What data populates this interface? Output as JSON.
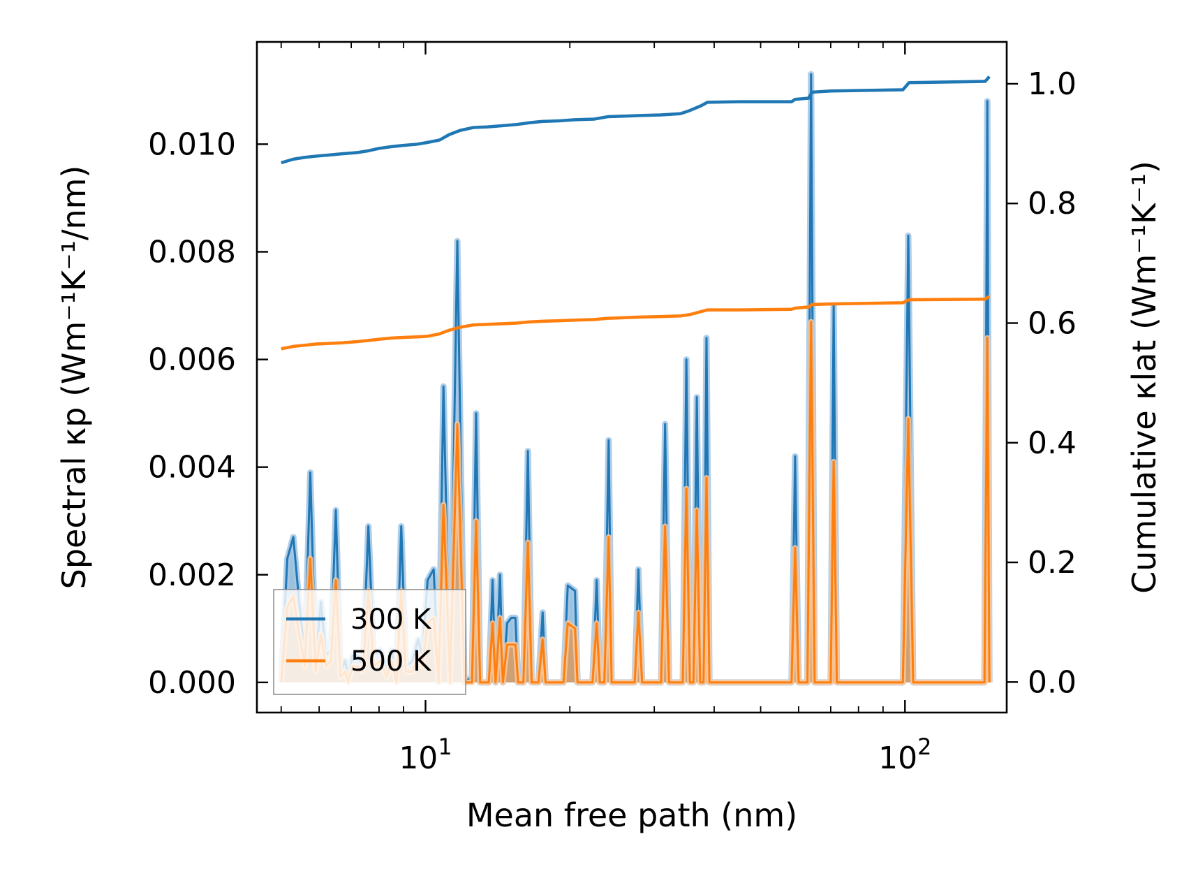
{
  "chart_data": {
    "type": "line",
    "title": "",
    "xlabel": "Mean free path (nm)",
    "ylabel_left": "Spectral κp (Wm⁻¹K⁻¹/nm)",
    "ylabel_right": "Cumulative κlat (Wm⁻¹K⁻¹)",
    "xscale": "log",
    "xlim": [
      4.45,
      163
    ],
    "ylim_left": [
      -0.00056,
      0.0119
    ],
    "ylim_right": [
      -0.051,
      1.07
    ],
    "x_ticks": [
      {
        "value": 10,
        "base": "10",
        "exp": "1"
      },
      {
        "value": 100,
        "base": "10",
        "exp": "2"
      }
    ],
    "y_ticks_left": [
      "0.000",
      "0.002",
      "0.004",
      "0.006",
      "0.008",
      "0.010"
    ],
    "y_ticks_right": [
      "0.0",
      "0.2",
      "0.4",
      "0.6",
      "0.8",
      "1.0"
    ],
    "legend": {
      "position": "lower-left",
      "entries": [
        "300 K",
        "500 K"
      ]
    },
    "colors": {
      "s300": "#1f77b4",
      "s500": "#ff7f0e",
      "fill300": "#a6c8e6",
      "fill500": "#ffc999"
    },
    "spectral_300K": [
      [
        5.0,
        0
      ],
      [
        5.15,
        0.0023
      ],
      [
        5.3,
        0.0027
      ],
      [
        5.45,
        0.0015
      ],
      [
        5.6,
        0.0005
      ],
      [
        5.75,
        0.0039
      ],
      [
        5.9,
        0.0004
      ],
      [
        6.05,
        0.0015
      ],
      [
        6.2,
        0.0005
      ],
      [
        6.35,
        0.0006
      ],
      [
        6.5,
        0.0032
      ],
      [
        6.65,
        0.0002
      ],
      [
        6.8,
        0.0004
      ],
      [
        6.9,
        0.0001
      ],
      [
        7.05,
        0.0005
      ],
      [
        7.2,
        0.0005
      ],
      [
        7.4,
        0.0003
      ],
      [
        7.6,
        0.0029
      ],
      [
        7.8,
        0.0005
      ],
      [
        8.05,
        0.0006
      ],
      [
        8.3,
        0.0002
      ],
      [
        8.5,
        0.0006
      ],
      [
        8.7,
        0.0001
      ],
      [
        8.9,
        0.0029
      ],
      [
        9.1,
        0.0003
      ],
      [
        9.4,
        0.0004
      ],
      [
        9.65,
        0.0008
      ],
      [
        9.85,
        0.0005
      ],
      [
        10.1,
        0.0019
      ],
      [
        10.4,
        0.0021
      ],
      [
        10.65,
        0
      ],
      [
        10.9,
        0.0055
      ],
      [
        11.25,
        0
      ],
      [
        11.65,
        0.0082
      ],
      [
        12.05,
        0
      ],
      [
        12.5,
        0.0001
      ],
      [
        12.75,
        0.005
      ],
      [
        13.0,
        0
      ],
      [
        13.55,
        0
      ],
      [
        13.8,
        0.0019
      ],
      [
        14.0,
        0
      ],
      [
        14.3,
        0.002
      ],
      [
        14.5,
        0
      ],
      [
        14.8,
        0.0011
      ],
      [
        15.1,
        0.0012
      ],
      [
        15.4,
        0.0012
      ],
      [
        15.6,
        0
      ],
      [
        16.0,
        0
      ],
      [
        16.35,
        0.0043
      ],
      [
        16.65,
        0
      ],
      [
        17.2,
        0
      ],
      [
        17.55,
        0.0013
      ],
      [
        17.8,
        0
      ],
      [
        19.4,
        0
      ],
      [
        19.8,
        0.0018
      ],
      [
        20.5,
        0.0017
      ],
      [
        20.75,
        0
      ],
      [
        22.3,
        0
      ],
      [
        22.75,
        0.0019
      ],
      [
        23.1,
        0
      ],
      [
        23.6,
        0
      ],
      [
        24.1,
        0.0045
      ],
      [
        24.45,
        0
      ],
      [
        27.3,
        0
      ],
      [
        27.8,
        0.0021
      ],
      [
        28.3,
        0
      ],
      [
        31.0,
        0
      ],
      [
        31.6,
        0.0048
      ],
      [
        32.2,
        0
      ],
      [
        34.4,
        0
      ],
      [
        35.0,
        0.006
      ],
      [
        35.6,
        0
      ],
      [
        36.2,
        0
      ],
      [
        36.8,
        0.0053
      ],
      [
        37.4,
        0
      ],
      [
        38.0,
        0
      ],
      [
        38.55,
        0.0064
      ],
      [
        39.1,
        0
      ],
      [
        58.0,
        0
      ],
      [
        59.0,
        0.0042
      ],
      [
        60.0,
        0
      ],
      [
        62.6,
        0
      ],
      [
        63.7,
        0.0113
      ],
      [
        64.8,
        0
      ],
      [
        70.0,
        0
      ],
      [
        71.0,
        0.007
      ],
      [
        72.1,
        0
      ],
      [
        99.0,
        0
      ],
      [
        101.6,
        0.0083
      ],
      [
        104.0,
        0
      ],
      [
        146.5,
        0
      ],
      [
        148.5,
        0.0108
      ],
      [
        150.0,
        0
      ]
    ],
    "spectral_500K": [
      [
        5.0,
        0
      ],
      [
        5.15,
        0.0014
      ],
      [
        5.3,
        0.0016
      ],
      [
        5.45,
        0.0009
      ],
      [
        5.6,
        0.0003
      ],
      [
        5.75,
        0.0023
      ],
      [
        5.9,
        0.0002
      ],
      [
        6.05,
        0.0009
      ],
      [
        6.2,
        0.0003
      ],
      [
        6.35,
        0.0004
      ],
      [
        6.5,
        0.0019
      ],
      [
        6.65,
        0.0001
      ],
      [
        6.8,
        0.0002
      ],
      [
        6.9,
        0
      ],
      [
        7.05,
        0.0003
      ],
      [
        7.2,
        0.0003
      ],
      [
        7.4,
        0.0002
      ],
      [
        7.6,
        0.0017
      ],
      [
        7.8,
        0.0003
      ],
      [
        8.05,
        0.0004
      ],
      [
        8.3,
        0.0001
      ],
      [
        8.5,
        0.0004
      ],
      [
        8.7,
        0
      ],
      [
        8.9,
        0.0017
      ],
      [
        9.1,
        0.0002
      ],
      [
        9.4,
        0.0002
      ],
      [
        9.65,
        0.0005
      ],
      [
        9.85,
        0.0003
      ],
      [
        10.1,
        0.0011
      ],
      [
        10.4,
        0.0012
      ],
      [
        10.65,
        0
      ],
      [
        10.9,
        0.0033
      ],
      [
        11.25,
        0
      ],
      [
        11.65,
        0.0048
      ],
      [
        12.05,
        0
      ],
      [
        12.5,
        0
      ],
      [
        12.75,
        0.003
      ],
      [
        13.0,
        0
      ],
      [
        13.55,
        0
      ],
      [
        13.8,
        0.0011
      ],
      [
        14.0,
        0
      ],
      [
        14.3,
        0.0012
      ],
      [
        14.5,
        0
      ],
      [
        14.8,
        0.0007
      ],
      [
        15.1,
        0.0007
      ],
      [
        15.4,
        0.0007
      ],
      [
        15.6,
        0
      ],
      [
        16.0,
        0
      ],
      [
        16.35,
        0.0026
      ],
      [
        16.65,
        0
      ],
      [
        17.2,
        0
      ],
      [
        17.55,
        0.0008
      ],
      [
        17.8,
        0
      ],
      [
        19.4,
        0
      ],
      [
        19.8,
        0.0011
      ],
      [
        20.5,
        0.001
      ],
      [
        20.75,
        0
      ],
      [
        22.3,
        0
      ],
      [
        22.75,
        0.0011
      ],
      [
        23.1,
        0
      ],
      [
        23.6,
        0
      ],
      [
        24.1,
        0.0027
      ],
      [
        24.45,
        0
      ],
      [
        27.3,
        0
      ],
      [
        27.8,
        0.0013
      ],
      [
        28.3,
        0
      ],
      [
        31.0,
        0
      ],
      [
        31.6,
        0.0029
      ],
      [
        32.2,
        0
      ],
      [
        34.4,
        0
      ],
      [
        35.0,
        0.0036
      ],
      [
        35.6,
        0
      ],
      [
        36.2,
        0
      ],
      [
        36.8,
        0.0032
      ],
      [
        37.4,
        0
      ],
      [
        38.0,
        0
      ],
      [
        38.55,
        0.0038
      ],
      [
        39.1,
        0
      ],
      [
        58.0,
        0
      ],
      [
        59.0,
        0.0025
      ],
      [
        60.0,
        0
      ],
      [
        62.6,
        0
      ],
      [
        63.7,
        0.0067
      ],
      [
        64.8,
        0
      ],
      [
        70.0,
        0
      ],
      [
        71.0,
        0.0041
      ],
      [
        72.1,
        0
      ],
      [
        99.0,
        0
      ],
      [
        101.6,
        0.0049
      ],
      [
        104.0,
        0
      ],
      [
        146.5,
        0
      ],
      [
        148.5,
        0.0064
      ],
      [
        150.0,
        0
      ]
    ],
    "cumulative_300K": [
      [
        5.0,
        0.868
      ],
      [
        5.3,
        0.874
      ],
      [
        5.6,
        0.877
      ],
      [
        5.9,
        0.879
      ],
      [
        6.3,
        0.881
      ],
      [
        6.7,
        0.883
      ],
      [
        7.2,
        0.885
      ],
      [
        7.6,
        0.888
      ],
      [
        8.0,
        0.892
      ],
      [
        8.5,
        0.895
      ],
      [
        9.0,
        0.897
      ],
      [
        9.6,
        0.899
      ],
      [
        10.1,
        0.902
      ],
      [
        10.7,
        0.906
      ],
      [
        11.2,
        0.915
      ],
      [
        11.8,
        0.922
      ],
      [
        12.6,
        0.927
      ],
      [
        13.5,
        0.928
      ],
      [
        14.5,
        0.93
      ],
      [
        15.5,
        0.932
      ],
      [
        16.5,
        0.935
      ],
      [
        17.5,
        0.937
      ],
      [
        19.0,
        0.938
      ],
      [
        20.5,
        0.94
      ],
      [
        22.5,
        0.941
      ],
      [
        24.0,
        0.945
      ],
      [
        26.0,
        0.946
      ],
      [
        28.0,
        0.947
      ],
      [
        31.0,
        0.948
      ],
      [
        34.0,
        0.95
      ],
      [
        35.5,
        0.955
      ],
      [
        37.5,
        0.963
      ],
      [
        38.7,
        0.969
      ],
      [
        45.0,
        0.97
      ],
      [
        58.0,
        0.97
      ],
      [
        59.0,
        0.974
      ],
      [
        63.0,
        0.976
      ],
      [
        64.0,
        0.986
      ],
      [
        70.0,
        0.988
      ],
      [
        99.0,
        0.99
      ],
      [
        102.0,
        1.002
      ],
      [
        147.0,
        1.004
      ],
      [
        150.0,
        1.012
      ]
    ],
    "cumulative_500K": [
      [
        5.0,
        0.557
      ],
      [
        5.3,
        0.561
      ],
      [
        5.6,
        0.563
      ],
      [
        5.9,
        0.565
      ],
      [
        6.3,
        0.566
      ],
      [
        6.7,
        0.567
      ],
      [
        7.2,
        0.569
      ],
      [
        7.6,
        0.571
      ],
      [
        8.0,
        0.573
      ],
      [
        8.5,
        0.575
      ],
      [
        9.0,
        0.576
      ],
      [
        9.6,
        0.577
      ],
      [
        10.1,
        0.578
      ],
      [
        10.7,
        0.582
      ],
      [
        11.2,
        0.588
      ],
      [
        11.8,
        0.593
      ],
      [
        12.6,
        0.597
      ],
      [
        13.5,
        0.598
      ],
      [
        14.5,
        0.599
      ],
      [
        15.5,
        0.6
      ],
      [
        16.5,
        0.602
      ],
      [
        17.5,
        0.603
      ],
      [
        19.0,
        0.604
      ],
      [
        20.5,
        0.605
      ],
      [
        22.5,
        0.606
      ],
      [
        24.0,
        0.608
      ],
      [
        26.0,
        0.609
      ],
      [
        28.0,
        0.61
      ],
      [
        31.0,
        0.611
      ],
      [
        34.0,
        0.612
      ],
      [
        35.5,
        0.614
      ],
      [
        37.5,
        0.619
      ],
      [
        38.7,
        0.622
      ],
      [
        45.0,
        0.622
      ],
      [
        58.0,
        0.623
      ],
      [
        59.0,
        0.625
      ],
      [
        63.0,
        0.627
      ],
      [
        64.0,
        0.631
      ],
      [
        70.0,
        0.632
      ],
      [
        99.0,
        0.634
      ],
      [
        102.0,
        0.639
      ],
      [
        147.0,
        0.64
      ],
      [
        150.0,
        0.645
      ]
    ]
  }
}
